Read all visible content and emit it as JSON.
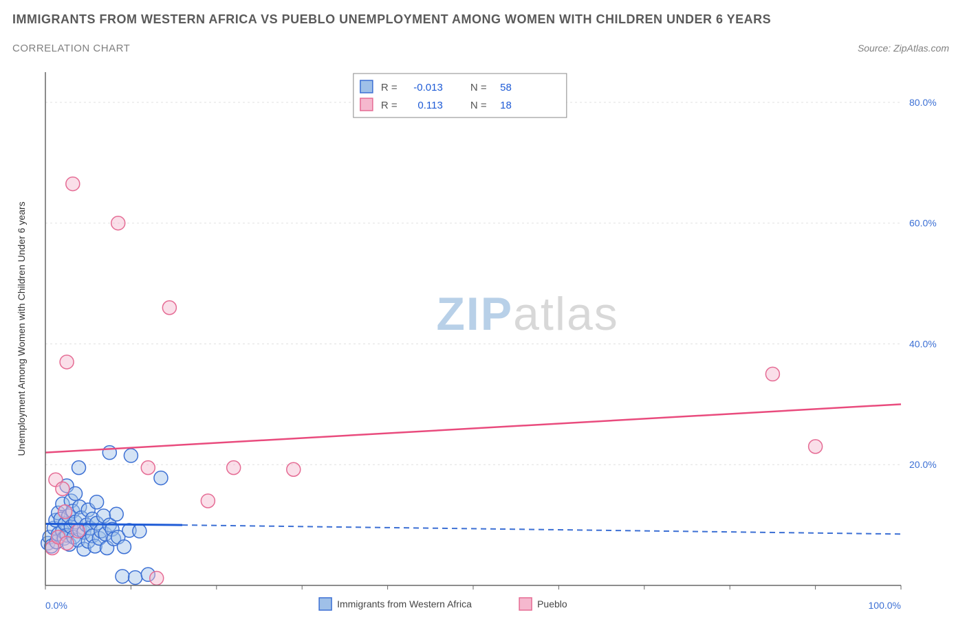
{
  "title": "IMMIGRANTS FROM WESTERN AFRICA VS PUEBLO UNEMPLOYMENT AMONG WOMEN WITH CHILDREN UNDER 6 YEARS",
  "subtitle": "CORRELATION CHART",
  "source": "Source: ZipAtlas.com",
  "watermark": {
    "part1": "ZIP",
    "part2": "atlas"
  },
  "chart": {
    "type": "scatter",
    "background_color": "#ffffff",
    "grid_color": "#e0e0e0",
    "axis_line_color": "#666666",
    "xlim": [
      0,
      100
    ],
    "ylim": [
      0,
      85
    ],
    "x_label": "",
    "y_label": "Unemployment Among Women with Children Under 6 years",
    "y_label_color": "#333333",
    "y_label_fontsize": 14,
    "x_ticks": [
      {
        "v": 0,
        "label": "0.0%"
      },
      {
        "v": 100,
        "label": "100.0%"
      }
    ],
    "y_ticks": [
      {
        "v": 20,
        "label": "20.0%"
      },
      {
        "v": 40,
        "label": "40.0%"
      },
      {
        "v": 60,
        "label": "60.0%"
      },
      {
        "v": 80,
        "label": "80.0%"
      }
    ],
    "x_tick_marks": [
      0,
      10,
      20,
      30,
      40,
      50,
      60,
      70,
      80,
      90,
      100
    ],
    "tick_label_color": "#3b6fd4",
    "tick_label_fontsize": 14,
    "marker_radius": 10,
    "marker_stroke_width": 1.5,
    "series": [
      {
        "name": "Immigrants from Western Africa",
        "fill": "#9fc0e8",
        "fill_opacity": 0.45,
        "stroke": "#3b6fd4",
        "points": [
          {
            "x": 0.3,
            "y": 7
          },
          {
            "x": 0.5,
            "y": 8
          },
          {
            "x": 0.7,
            "y": 6.5
          },
          {
            "x": 1.0,
            "y": 9.5
          },
          {
            "x": 1.2,
            "y": 10.8
          },
          {
            "x": 1.3,
            "y": 7.2
          },
          {
            "x": 1.5,
            "y": 8.5
          },
          {
            "x": 1.5,
            "y": 12
          },
          {
            "x": 1.8,
            "y": 11
          },
          {
            "x": 2.0,
            "y": 9
          },
          {
            "x": 2.0,
            "y": 13.5
          },
          {
            "x": 2.2,
            "y": 7.8
          },
          {
            "x": 2.3,
            "y": 10.2
          },
          {
            "x": 2.5,
            "y": 16.5
          },
          {
            "x": 2.5,
            "y": 8.3
          },
          {
            "x": 2.7,
            "y": 11.5
          },
          {
            "x": 2.8,
            "y": 6.8
          },
          {
            "x": 3.0,
            "y": 9.7
          },
          {
            "x": 3.0,
            "y": 14
          },
          {
            "x": 3.2,
            "y": 12.3
          },
          {
            "x": 3.3,
            "y": 8
          },
          {
            "x": 3.5,
            "y": 10.5
          },
          {
            "x": 3.5,
            "y": 15.2
          },
          {
            "x": 3.8,
            "y": 7.5
          },
          {
            "x": 3.9,
            "y": 19.5
          },
          {
            "x": 4.0,
            "y": 9.2
          },
          {
            "x": 4.0,
            "y": 13
          },
          {
            "x": 4.2,
            "y": 11.2
          },
          {
            "x": 4.5,
            "y": 8.8
          },
          {
            "x": 4.5,
            "y": 6
          },
          {
            "x": 4.8,
            "y": 10
          },
          {
            "x": 5.0,
            "y": 12.5
          },
          {
            "x": 5.0,
            "y": 7.3
          },
          {
            "x": 5.2,
            "y": 9.5
          },
          {
            "x": 5.5,
            "y": 8.2
          },
          {
            "x": 5.5,
            "y": 11
          },
          {
            "x": 5.8,
            "y": 6.5
          },
          {
            "x": 6.0,
            "y": 10.3
          },
          {
            "x": 6.0,
            "y": 13.8
          },
          {
            "x": 6.3,
            "y": 7.8
          },
          {
            "x": 6.5,
            "y": 9
          },
          {
            "x": 6.8,
            "y": 11.5
          },
          {
            "x": 7.0,
            "y": 8.5
          },
          {
            "x": 7.2,
            "y": 6.2
          },
          {
            "x": 7.5,
            "y": 10
          },
          {
            "x": 7.5,
            "y": 22
          },
          {
            "x": 7.8,
            "y": 9.3
          },
          {
            "x": 8.0,
            "y": 7.7
          },
          {
            "x": 8.3,
            "y": 11.8
          },
          {
            "x": 8.5,
            "y": 8
          },
          {
            "x": 9.0,
            "y": 1.5
          },
          {
            "x": 9.2,
            "y": 6.4
          },
          {
            "x": 9.8,
            "y": 9.1
          },
          {
            "x": 10,
            "y": 21.5
          },
          {
            "x": 10.5,
            "y": 1.3
          },
          {
            "x": 11,
            "y": 9
          },
          {
            "x": 12,
            "y": 1.8
          },
          {
            "x": 13.5,
            "y": 17.8
          }
        ],
        "trend": {
          "x1": 0,
          "y1": 10.2,
          "x2": 16,
          "y2": 10.0,
          "color": "#1e5bd6",
          "width": 3,
          "dash": "none"
        },
        "trend_ext": {
          "x1": 16,
          "y1": 10.0,
          "x2": 100,
          "y2": 8.5,
          "color": "#3b6fd4",
          "width": 2,
          "dash": "8,6"
        }
      },
      {
        "name": "Pueblo",
        "fill": "#f5b8ce",
        "fill_opacity": 0.45,
        "stroke": "#e56b94",
        "points": [
          {
            "x": 0.8,
            "y": 6.2
          },
          {
            "x": 1.2,
            "y": 17.5
          },
          {
            "x": 1.5,
            "y": 8
          },
          {
            "x": 2.0,
            "y": 16
          },
          {
            "x": 2.3,
            "y": 12.2
          },
          {
            "x": 2.5,
            "y": 7
          },
          {
            "x": 2.5,
            "y": 37
          },
          {
            "x": 3.2,
            "y": 66.5
          },
          {
            "x": 3.8,
            "y": 9
          },
          {
            "x": 8.5,
            "y": 60
          },
          {
            "x": 12,
            "y": 19.5
          },
          {
            "x": 13,
            "y": 1.2
          },
          {
            "x": 14.5,
            "y": 46
          },
          {
            "x": 19,
            "y": 14
          },
          {
            "x": 22,
            "y": 19.5
          },
          {
            "x": 29,
            "y": 19.2
          },
          {
            "x": 85,
            "y": 35
          },
          {
            "x": 90,
            "y": 23
          }
        ],
        "trend": {
          "x1": 0,
          "y1": 22,
          "x2": 100,
          "y2": 30,
          "color": "#e94b7d",
          "width": 2.5,
          "dash": "none"
        }
      }
    ],
    "stats_box": {
      "border_color": "#888888",
      "bg": "#ffffff",
      "font_size": 15,
      "rows": [
        {
          "swatch_fill": "#9fc0e8",
          "swatch_stroke": "#3b6fd4",
          "r_label": "R =",
          "r_val": "-0.013",
          "n_label": "N =",
          "n_val": "58",
          "label_color": "#555555",
          "val_color": "#1e5bd6"
        },
        {
          "swatch_fill": "#f5b8ce",
          "swatch_stroke": "#e56b94",
          "r_label": "R =",
          "r_val": " 0.113",
          "n_label": "N =",
          "n_val": " 18",
          "label_color": "#555555",
          "val_color": "#1e5bd6"
        }
      ]
    },
    "legend": {
      "font_size": 14,
      "label_color": "#444444",
      "items": [
        {
          "swatch_fill": "#9fc0e8",
          "swatch_stroke": "#3b6fd4",
          "label": "Immigrants from Western Africa"
        },
        {
          "swatch_fill": "#f5b8ce",
          "swatch_stroke": "#e56b94",
          "label": "Pueblo"
        }
      ]
    }
  }
}
